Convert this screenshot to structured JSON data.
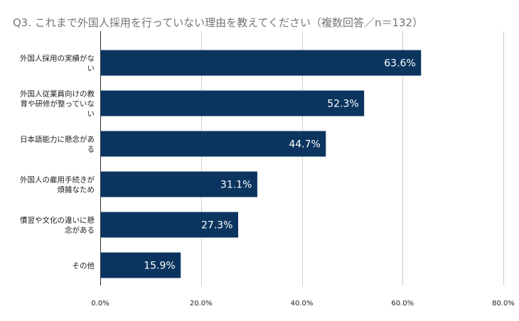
{
  "chart_data": {
    "type": "bar",
    "orientation": "horizontal",
    "title": "Q3. これまで外国人採用を行っていない理由を教えてください（複数回答／n＝132）",
    "categories": [
      "外国人採用の実績がない",
      "外国人従業員向けの教育や研修が整っていない",
      "日本語能力に懸念がある",
      "外国人の雇用手続きが煩雑なため",
      "慣習や文化の違いに懸念がある",
      "その他"
    ],
    "category_label_lines": [
      [
        "外国人採用の実績がな",
        "い"
      ],
      [
        "外国人従業員向けの教",
        "育や研修が整っていな",
        "い"
      ],
      [
        "日本語能力に懸念があ",
        "る"
      ],
      [
        "外国人の雇用手続きが",
        "煩雑なため"
      ],
      [
        "慣習や文化の違いに懸",
        "念がある"
      ],
      [
        "その他"
      ]
    ],
    "values": [
      63.6,
      52.3,
      44.7,
      31.1,
      27.3,
      15.9
    ],
    "data_labels": [
      "63.6%",
      "52.3%",
      "44.7%",
      "31.1%",
      "27.3%",
      "15.9%"
    ],
    "xlim": [
      0,
      80
    ],
    "x_ticks": [
      0,
      20,
      40,
      60,
      80
    ],
    "x_tick_labels": [
      "0.0%",
      "20.0%",
      "40.0%",
      "60.0%",
      "80.0%"
    ],
    "xlabel": "",
    "ylabel": "",
    "grid": true,
    "legend": "none",
    "colors": {
      "bar": "#0b355f",
      "grid": "#cccccc",
      "title": "#757575",
      "label": "#222222",
      "data_label": "#ffffff"
    }
  }
}
